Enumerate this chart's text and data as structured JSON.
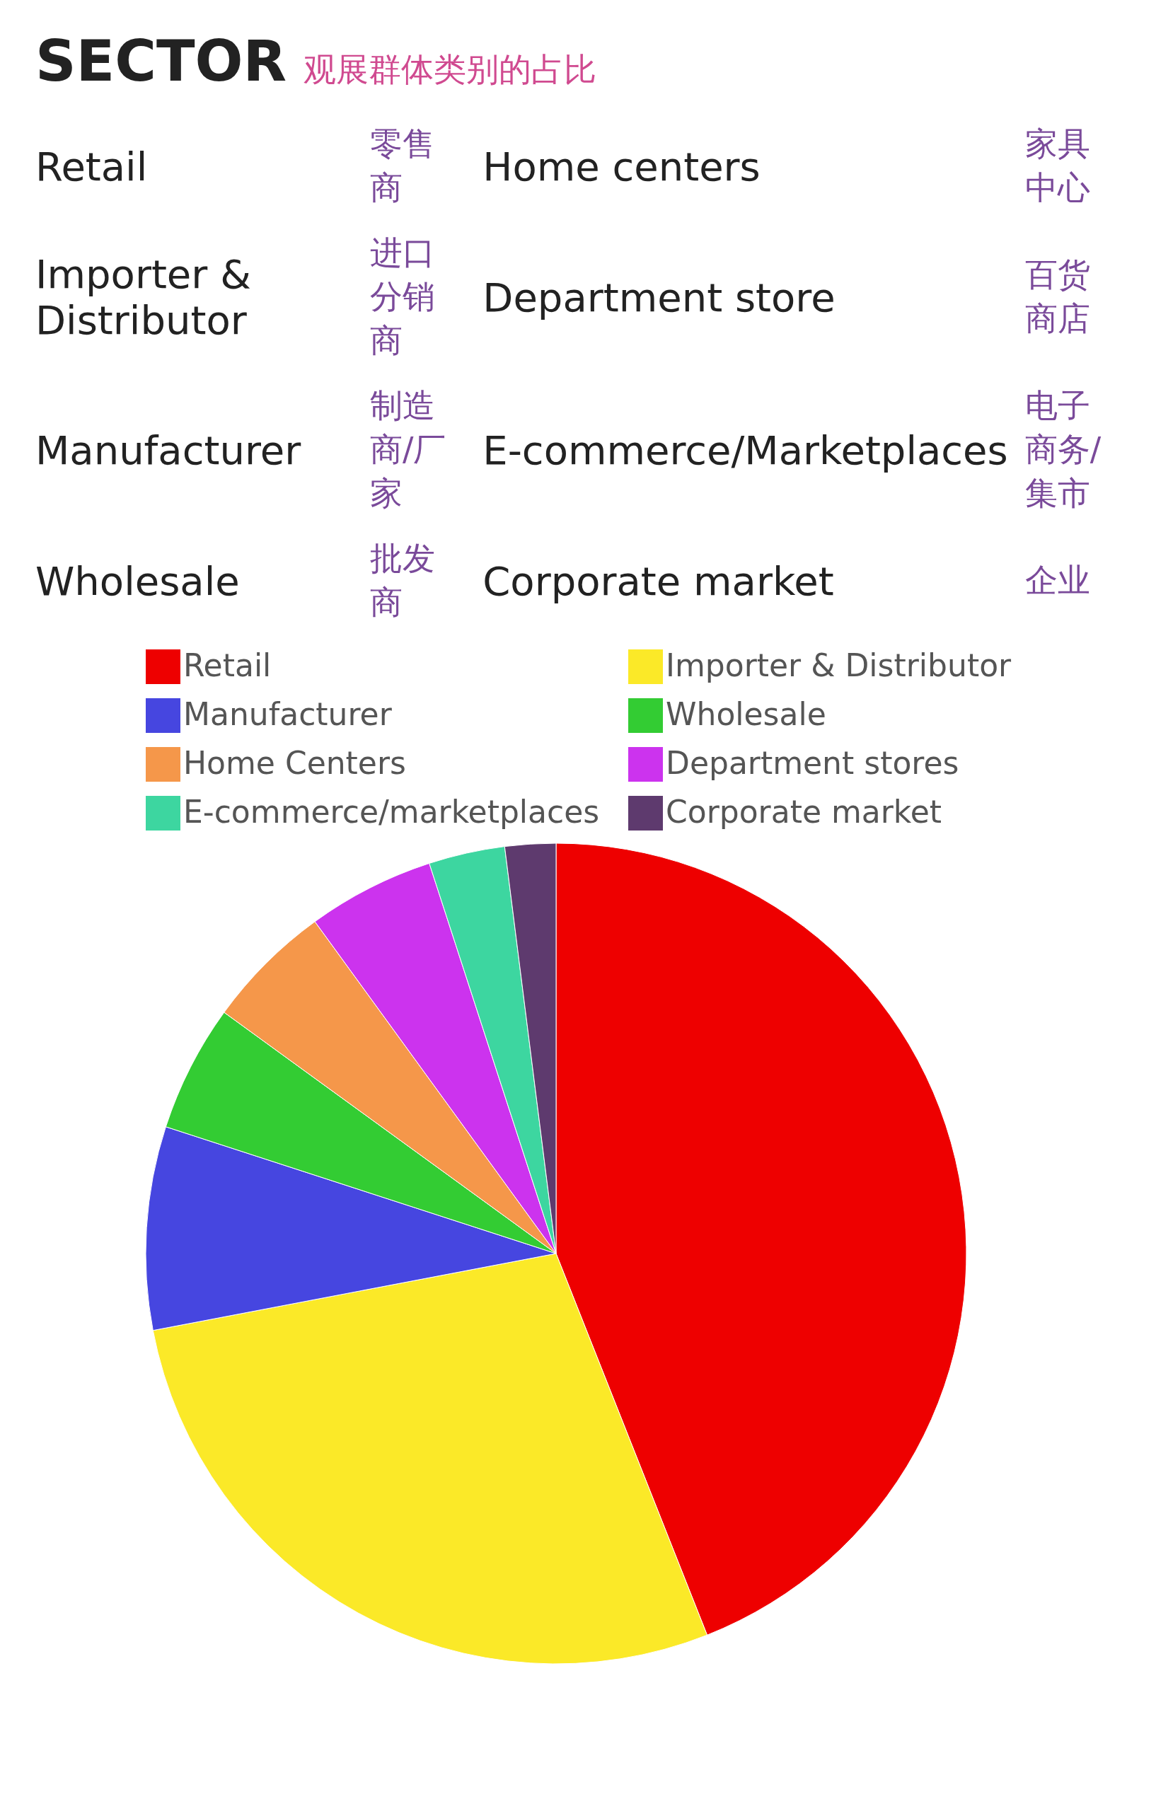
{
  "chart_data": {
    "type": "pie",
    "title": "SECTOR",
    "subtitle": "观展群体类别的占比",
    "annotations": [
      "Retail",
      "零售商",
      "Home centers",
      "家具中心",
      "Importer & Distributor",
      "进口分销商",
      "Department store",
      "百货商店",
      "Manufacturer",
      "制造商/厂家",
      "E-commerce/Marketplaces",
      "电子商务/集市",
      "Wholesale",
      "批发商",
      "Corporate market",
      "企业"
    ],
    "categories": [
      "Retail",
      "Importer & Distributor",
      "Manufacturer",
      "Wholesale",
      "Home Centers",
      "Department stores",
      "E-commerce/marketplaces",
      "Corporate market"
    ],
    "values": [
      44,
      28,
      8,
      5,
      5,
      5,
      3,
      2
    ],
    "colors": [
      "#ee0000",
      "#fbe928",
      "#4646e0",
      "#33cc33",
      "#f5974a",
      "#cc33ee",
      "#3dd6a0",
      "#5e3a6e"
    ],
    "legend": "top"
  }
}
